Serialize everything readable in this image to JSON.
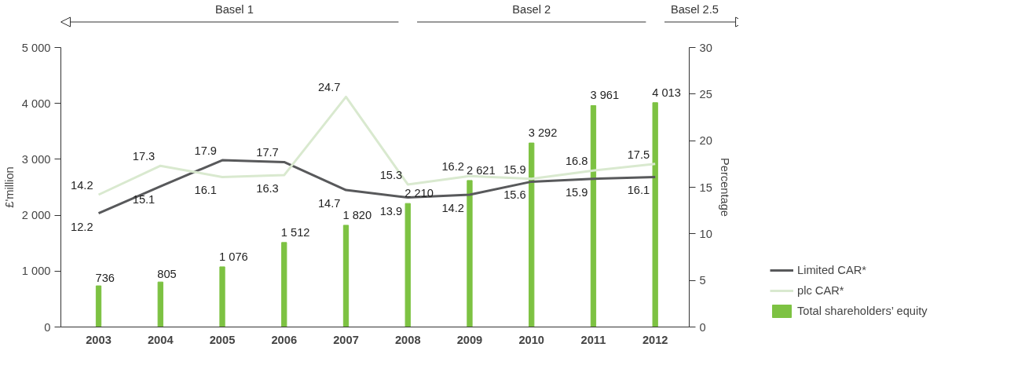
{
  "chart_data": {
    "type": "bar",
    "categories": [
      "2003",
      "2004",
      "2005",
      "2006",
      "2007",
      "2008",
      "2009",
      "2010",
      "2011",
      "2012"
    ],
    "ylabel": "£'million",
    "y2label": "Percentage",
    "ylim": [
      0,
      5000
    ],
    "yticks": [
      {
        "value": 0,
        "label": "0"
      },
      {
        "value": 1000,
        "label": "1 000"
      },
      {
        "value": 2000,
        "label": "2 000"
      },
      {
        "value": 3000,
        "label": "3 000"
      },
      {
        "value": 4000,
        "label": "4 000"
      },
      {
        "value": 5000,
        "label": "5 000"
      }
    ],
    "y2lim": [
      0,
      30
    ],
    "y2ticks": [
      0,
      5,
      10,
      15,
      20,
      25,
      30
    ],
    "series": [
      {
        "name": "Limited CAR*",
        "type": "line",
        "axis": "y2",
        "color": "#58595b",
        "values": [
          12.2,
          15.1,
          17.9,
          17.7,
          14.7,
          13.9,
          14.2,
          15.6,
          15.9,
          16.1
        ]
      },
      {
        "name": "plc CAR*",
        "type": "line",
        "axis": "y2",
        "color": "#d9e9cf",
        "values": [
          14.2,
          17.3,
          16.1,
          16.3,
          24.7,
          15.3,
          16.2,
          15.9,
          16.8,
          17.5
        ]
      },
      {
        "name": "Total shareholders’ equity",
        "color": "#7dc242",
        "values": [
          736,
          805,
          1076,
          1512,
          1820,
          2210,
          2621,
          3292,
          3961,
          4013
        ],
        "value_labels": [
          "736",
          "805",
          "1 076",
          "1 512",
          "1 820",
          "2 210",
          "2 621",
          "3 292",
          "3 961",
          "4 013"
        ]
      }
    ],
    "data_labels": true,
    "grid": false,
    "legend": "bottom right",
    "marker": "none",
    "annotations": [
      "Basel 1",
      "Basel 2",
      "Basel 2.5"
    ]
  }
}
